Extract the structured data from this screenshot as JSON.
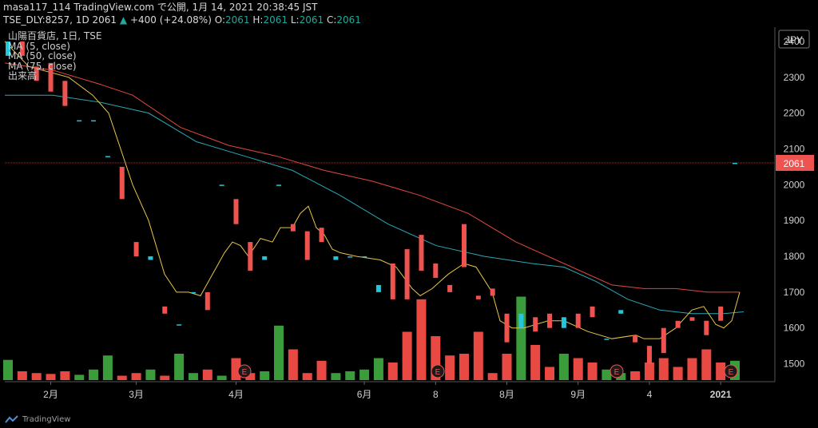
{
  "header": {
    "line1": "masa117_114 TradingView.com で公開, 1月 14, 2021 20:38:45 JST",
    "symbol": "TSE_DLY:8257, 1D 2061",
    "change": "+400 (+24.08%)",
    "o_label": "O:",
    "o": "2061",
    "h_label": "H:",
    "h": "2061",
    "l_label": "L:",
    "l": "2061",
    "c_label": "C:",
    "c": "2061"
  },
  "legend": {
    "title": "山陽百貨店, 1日, TSE",
    "ma5": "MA (5, close)",
    "ma50": "MA (50, close)",
    "ma75": "MA (75, close)",
    "volume": "出来高"
  },
  "footer": {
    "brand": "TradingView"
  },
  "chart_data": {
    "type": "candlestick",
    "currency": "JPY",
    "last_price": 2061,
    "last_price_label": "2061",
    "ylim": [
      1450,
      2440
    ],
    "y_ticks": [
      1500,
      1600,
      1700,
      1800,
      1900,
      2000,
      2100,
      2200,
      2300,
      2400
    ],
    "x_ticks": [
      "2月",
      "3月",
      "4月",
      "6月",
      "8",
      "8月",
      "9月",
      "4",
      "2021"
    ],
    "colors": {
      "up": "#26c6da",
      "down": "#ef5350",
      "ma5": "#e8c547",
      "ma50": "#2aa8b8",
      "ma75": "#e0483f",
      "vol_up": "#3b9c3b",
      "vol_down": "#e84a43"
    },
    "candles": [
      {
        "o": 2360,
        "c": 2400
      },
      {
        "o": 2400,
        "c": 2360
      },
      {
        "o": 2330,
        "c": 2290
      },
      {
        "o": 2340,
        "c": 2260
      },
      {
        "o": 2290,
        "c": 2220
      },
      {
        "o": 2180,
        "c": 2180
      },
      {
        "o": 2180,
        "c": 2180
      },
      {
        "o": 2080,
        "c": 2080
      },
      {
        "o": 2050,
        "c": 1960
      },
      {
        "o": 1840,
        "c": 1800
      },
      {
        "o": 1790,
        "c": 1800
      },
      {
        "o": 1660,
        "c": 1640
      },
      {
        "o": 1610,
        "c": 1610
      },
      {
        "o": 1700,
        "c": 1700
      },
      {
        "o": 1700,
        "c": 1650
      },
      {
        "o": 2000,
        "c": 2000
      },
      {
        "o": 1960,
        "c": 1890
      },
      {
        "o": 1840,
        "c": 1760
      },
      {
        "o": 1790,
        "c": 1800
      },
      {
        "o": 2000,
        "c": 2000
      },
      {
        "o": 1890,
        "c": 1870
      },
      {
        "o": 1870,
        "c": 1790
      },
      {
        "o": 1880,
        "c": 1840
      },
      {
        "o": 1790,
        "c": 1800
      },
      {
        "o": 1800,
        "c": 1800
      },
      {
        "o": 1800,
        "c": 1800
      },
      {
        "o": 1700,
        "c": 1720
      },
      {
        "o": 1780,
        "c": 1680
      },
      {
        "o": 1820,
        "c": 1680
      },
      {
        "o": 1860,
        "c": 1760
      },
      {
        "o": 1780,
        "c": 1740
      },
      {
        "o": 1720,
        "c": 1700
      },
      {
        "o": 1890,
        "c": 1770
      },
      {
        "o": 1690,
        "c": 1680
      },
      {
        "o": 1710,
        "c": 1690
      },
      {
        "o": 1640,
        "c": 1560
      },
      {
        "o": 1600,
        "c": 1640
      },
      {
        "o": 1630,
        "c": 1590
      },
      {
        "o": 1640,
        "c": 1600
      },
      {
        "o": 1600,
        "c": 1630
      },
      {
        "o": 1640,
        "c": 1600
      },
      {
        "o": 1660,
        "c": 1630
      },
      {
        "o": 1570,
        "c": 1570
      },
      {
        "o": 1640,
        "c": 1650
      },
      {
        "o": 1580,
        "c": 1560
      },
      {
        "o": 1550,
        "c": 1500
      },
      {
        "o": 1600,
        "c": 1530
      },
      {
        "o": 1620,
        "c": 1600
      },
      {
        "o": 1630,
        "c": 1620
      },
      {
        "o": 1620,
        "c": 1580
      },
      {
        "o": 1660,
        "c": 1620
      },
      {
        "o": 2061,
        "c": 2061
      }
    ],
    "volume_relative": [
      0.23,
      0.1,
      0.08,
      0.07,
      0.1,
      0.06,
      0.12,
      0.28,
      0.05,
      0.08,
      0.12,
      0.05,
      0.3,
      0.08,
      0.12,
      0.05,
      0.25,
      0.08,
      0.1,
      0.62,
      0.35,
      0.08,
      0.22,
      0.08,
      0.1,
      0.12,
      0.25,
      0.2,
      0.55,
      0.92,
      0.5,
      0.28,
      0.3,
      0.55,
      0.08,
      0.3,
      0.95,
      0.4,
      0.15,
      0.3,
      0.25,
      0.2,
      0.12,
      0.08,
      0.1,
      0.2,
      0.25,
      0.15,
      0.25,
      0.35,
      0.2,
      0.22
    ],
    "ma5": [
      [
        0,
        2400
      ],
      [
        30,
        2330
      ],
      [
        80,
        2300
      ],
      [
        110,
        2250
      ],
      [
        130,
        2200
      ],
      [
        160,
        2000
      ],
      [
        180,
        1900
      ],
      [
        200,
        1750
      ],
      [
        215,
        1700
      ],
      [
        230,
        1700
      ],
      [
        245,
        1690
      ],
      [
        260,
        1750
      ],
      [
        275,
        1810
      ],
      [
        285,
        1840
      ],
      [
        295,
        1830
      ],
      [
        305,
        1800
      ],
      [
        320,
        1850
      ],
      [
        335,
        1840
      ],
      [
        345,
        1880
      ],
      [
        360,
        1880
      ],
      [
        370,
        1920
      ],
      [
        380,
        1940
      ],
      [
        390,
        1880
      ],
      [
        400,
        1860
      ],
      [
        410,
        1820
      ],
      [
        420,
        1810
      ],
      [
        440,
        1800
      ],
      [
        470,
        1790
      ],
      [
        490,
        1770
      ],
      [
        510,
        1710
      ],
      [
        520,
        1690
      ],
      [
        535,
        1710
      ],
      [
        555,
        1750
      ],
      [
        575,
        1780
      ],
      [
        590,
        1770
      ],
      [
        610,
        1700
      ],
      [
        620,
        1620
      ],
      [
        635,
        1600
      ],
      [
        650,
        1600
      ],
      [
        680,
        1620
      ],
      [
        700,
        1620
      ],
      [
        730,
        1590
      ],
      [
        760,
        1570
      ],
      [
        790,
        1580
      ],
      [
        800,
        1570
      ],
      [
        820,
        1570
      ],
      [
        840,
        1600
      ],
      [
        860,
        1650
      ],
      [
        875,
        1660
      ],
      [
        890,
        1610
      ],
      [
        900,
        1600
      ],
      [
        910,
        1620
      ],
      [
        920,
        1700
      ]
    ],
    "ma50": [
      [
        0,
        2250
      ],
      [
        60,
        2250
      ],
      [
        120,
        2230
      ],
      [
        180,
        2200
      ],
      [
        240,
        2120
      ],
      [
        300,
        2080
      ],
      [
        360,
        2040
      ],
      [
        420,
        1970
      ],
      [
        480,
        1890
      ],
      [
        540,
        1830
      ],
      [
        600,
        1800
      ],
      [
        660,
        1780
      ],
      [
        700,
        1770
      ],
      [
        740,
        1730
      ],
      [
        780,
        1680
      ],
      [
        820,
        1650
      ],
      [
        860,
        1640
      ],
      [
        900,
        1640
      ],
      [
        925,
        1645
      ]
    ],
    "ma75": [
      [
        0,
        2340
      ],
      [
        60,
        2320
      ],
      [
        120,
        2280
      ],
      [
        160,
        2250
      ],
      [
        220,
        2160
      ],
      [
        280,
        2110
      ],
      [
        340,
        2080
      ],
      [
        400,
        2040
      ],
      [
        460,
        2010
      ],
      [
        520,
        1970
      ],
      [
        580,
        1920
      ],
      [
        640,
        1840
      ],
      [
        700,
        1780
      ],
      [
        760,
        1720
      ],
      [
        800,
        1710
      ],
      [
        840,
        1710
      ],
      [
        880,
        1700
      ],
      [
        920,
        1700
      ]
    ]
  }
}
